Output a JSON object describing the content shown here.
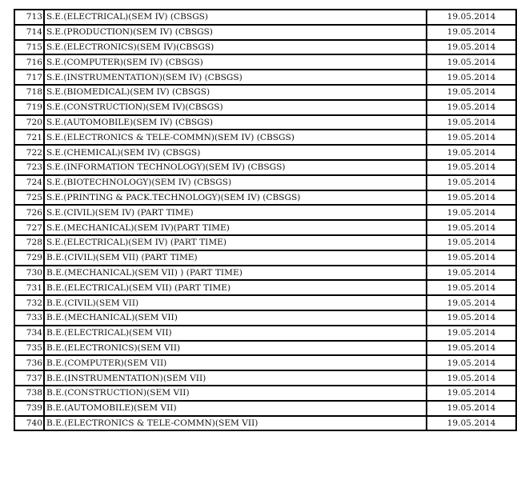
{
  "rows": [
    {
      "no": "713",
      "course": "S.E.(ELECTRICAL)(SEM IV) (CBSGS)",
      "date": "19.05.2014"
    },
    {
      "no": "714",
      "course": "S.E.(PRODUCTION)(SEM IV) (CBSGS)",
      "date": "19.05.2014"
    },
    {
      "no": "715",
      "course": "S.E.(ELECTRONICS)(SEM IV)(CBSGS)",
      "date": "19.05.2014"
    },
    {
      "no": "716",
      "course": "S.E.(COMPUTER)(SEM IV) (CBSGS)",
      "date": "19.05.2014"
    },
    {
      "no": "717",
      "course": "S.E.(INSTRUMENTATION)(SEM IV) (CBSGS)",
      "date": "19.05.2014"
    },
    {
      "no": "718",
      "course": "S.E.(BIOMEDICAL)(SEM IV) (CBSGS)",
      "date": "19.05.2014"
    },
    {
      "no": "719",
      "course": "S.E.(CONSTRUCTION)(SEM IV)(CBSGS)",
      "date": "19.05.2014"
    },
    {
      "no": "720",
      "course": "S.E.(AUTOMOBILE)(SEM IV) (CBSGS)",
      "date": "19.05.2014"
    },
    {
      "no": "721",
      "course": "S.E.(ELECTRONICS & TELE-COMMN)(SEM IV) (CBSGS)",
      "date": "19.05.2014"
    },
    {
      "no": "722",
      "course": "S.E.(CHEMICAL)(SEM IV) (CBSGS)",
      "date": "19.05.2014"
    },
    {
      "no": "723",
      "course": "S.E.(INFORMATION TECHNOLOGY)(SEM IV) (CBSGS)",
      "date": "19.05.2014"
    },
    {
      "no": "724",
      "course": "S.E.(BIOTECHNOLOGY)(SEM IV) (CBSGS)",
      "date": "19.05.2014"
    },
    {
      "no": "725",
      "course": "S.E.(PRINTING & PACK.TECHNOLOGY)(SEM IV) (CBSGS)",
      "date": "19.05.2014"
    },
    {
      "no": "726",
      "course": "S.E.(CIVIL)(SEM IV) (PART TIME)",
      "date": "19.05.2014"
    },
    {
      "no": "727",
      "course": "S.E.(MECHANICAL)(SEM IV)(PART TIME)",
      "date": "19.05.2014"
    },
    {
      "no": "728",
      "course": "S.E.(ELECTRICAL)(SEM IV) (PART TIME)",
      "date": "19.05.2014"
    },
    {
      "no": "729",
      "course": "B.E.(CIVIL)(SEM VII) (PART TIME)",
      "date": "19.05.2014"
    },
    {
      "no": "730",
      "course": "B.E.(MECHANICAL)(SEM VII) ) (PART TIME)",
      "date": "19.05.2014"
    },
    {
      "no": "731",
      "course": "B.E.(ELECTRICAL)(SEM VII) (PART TIME)",
      "date": "19.05.2014"
    },
    {
      "no": "732",
      "course": "B.E.(CIVIL)(SEM VII)",
      "date": "19.05.2014"
    },
    {
      "no": "733",
      "course": "B.E.(MECHANICAL)(SEM VII)",
      "date": "19.05.2014"
    },
    {
      "no": "734",
      "course": "B.E.(ELECTRICAL)(SEM VII)",
      "date": "19.05.2014"
    },
    {
      "no": "735",
      "course": "B.E.(ELECTRONICS)(SEM VII)",
      "date": "19.05.2014"
    },
    {
      "no": "736",
      "course": "B.E.(COMPUTER)(SEM VII)",
      "date": "19.05.2014"
    },
    {
      "no": "737",
      "course": "B.E.(INSTRUMENTATION)(SEM VII)",
      "date": "19.05.2014"
    },
    {
      "no": "738",
      "course": "B.E.(CONSTRUCTION)(SEM VII)",
      "date": "19.05.2014"
    },
    {
      "no": "739",
      "course": "B.E.(AUTOMOBILE)(SEM VII)",
      "date": "19.05.2014"
    },
    {
      "no": "740",
      "course": "B.E.(ELECTRONICS & TELE-COMMN)(SEM VII)",
      "date": "19.05.2014"
    }
  ]
}
